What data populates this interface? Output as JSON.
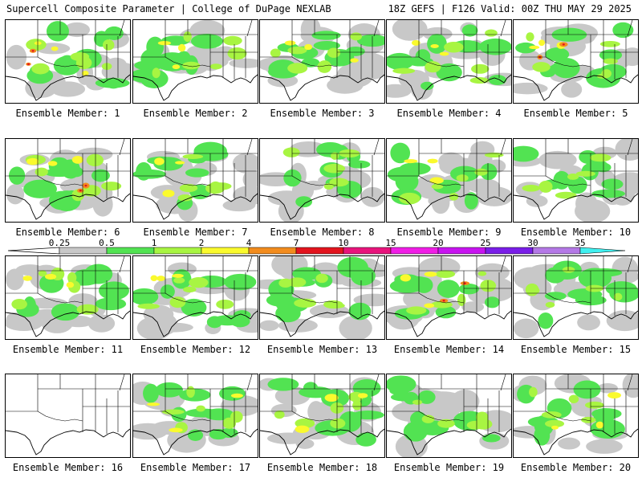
{
  "header": {
    "left": "Supercell Composite Parameter | College of DuPage NEXLAB",
    "right": "18Z GEFS | F126 Valid: 00Z THU MAY 29 2025"
  },
  "legend": {
    "ticks": [
      "0.25",
      "0.5",
      "1",
      "2",
      "4",
      "7",
      "10",
      "15",
      "20",
      "25",
      "30",
      "35"
    ],
    "colors": [
      "#c8c8c8",
      "#52e352",
      "#a8f542",
      "#fafa2d",
      "#f28c1e",
      "#e3141e",
      "#e8147c",
      "#f01ee6",
      "#c814f0",
      "#7a1ee8",
      "#b478e6",
      "#40f0f0"
    ]
  },
  "members": [
    {
      "label": "Ensemble Member: 1",
      "intensity": "high"
    },
    {
      "label": "Ensemble Member: 2",
      "intensity": "moderate"
    },
    {
      "label": "Ensemble Member: 3",
      "intensity": "moderate"
    },
    {
      "label": "Ensemble Member: 4",
      "intensity": "moderate"
    },
    {
      "label": "Ensemble Member: 5",
      "intensity": "high"
    },
    {
      "label": "Ensemble Member: 6",
      "intensity": "high"
    },
    {
      "label": "Ensemble Member: 7",
      "intensity": "moderate"
    },
    {
      "label": "Ensemble Member: 8",
      "intensity": "low"
    },
    {
      "label": "Ensemble Member: 9",
      "intensity": "moderate"
    },
    {
      "label": "Ensemble Member: 10",
      "intensity": "low"
    },
    {
      "label": "Ensemble Member: 11",
      "intensity": "moderate"
    },
    {
      "label": "Ensemble Member: 12",
      "intensity": "moderate"
    },
    {
      "label": "Ensemble Member: 13",
      "intensity": "low"
    },
    {
      "label": "Ensemble Member: 14",
      "intensity": "high"
    },
    {
      "label": "Ensemble Member: 15",
      "intensity": "low"
    },
    {
      "label": "Ensemble Member: 16",
      "intensity": "none"
    },
    {
      "label": "Ensemble Member: 17",
      "intensity": "moderate"
    },
    {
      "label": "Ensemble Member: 18",
      "intensity": "moderate"
    },
    {
      "label": "Ensemble Member: 19",
      "intensity": "low"
    },
    {
      "label": "Ensemble Member: 20",
      "intensity": "moderate"
    }
  ]
}
